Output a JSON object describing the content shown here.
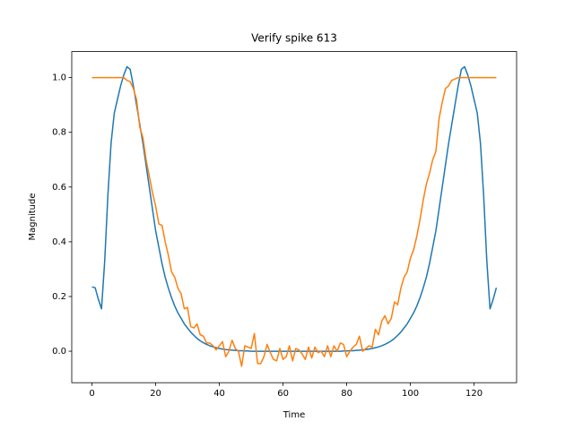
{
  "chart_data": {
    "type": "line",
    "title": "Verify spike 613",
    "xlabel": "Time",
    "ylabel": "Magnitude",
    "x": [
      0,
      1,
      2,
      3,
      4,
      5,
      6,
      7,
      8,
      9,
      10,
      11,
      12,
      13,
      14,
      15,
      16,
      17,
      18,
      19,
      20,
      21,
      22,
      23,
      24,
      25,
      26,
      27,
      28,
      29,
      30,
      31,
      32,
      33,
      34,
      35,
      36,
      37,
      38,
      39,
      40,
      41,
      42,
      43,
      44,
      45,
      46,
      47,
      48,
      49,
      50,
      51,
      52,
      53,
      54,
      55,
      56,
      57,
      58,
      59,
      60,
      61,
      62,
      63,
      64,
      65,
      66,
      67,
      68,
      69,
      70,
      71,
      72,
      73,
      74,
      75,
      76,
      77,
      78,
      79,
      80,
      81,
      82,
      83,
      84,
      85,
      86,
      87,
      88,
      89,
      90,
      91,
      92,
      93,
      94,
      95,
      96,
      97,
      98,
      99,
      100,
      101,
      102,
      103,
      104,
      105,
      106,
      107,
      108,
      109,
      110,
      111,
      112,
      113,
      114,
      115,
      116,
      117,
      118,
      119,
      120,
      121,
      122,
      123,
      124,
      125,
      126,
      127
    ],
    "series": [
      {
        "color": "#1f77b4",
        "values": [
          0.235,
          0.232,
          0.19,
          0.155,
          0.33,
          0.57,
          0.76,
          0.87,
          0.92,
          0.97,
          1.01,
          1.04,
          1.03,
          0.97,
          0.9,
          0.83,
          0.76,
          0.68,
          0.6,
          0.52,
          0.44,
          0.38,
          0.32,
          0.27,
          0.23,
          0.195,
          0.165,
          0.14,
          0.12,
          0.1,
          0.085,
          0.07,
          0.058,
          0.047,
          0.038,
          0.031,
          0.025,
          0.02,
          0.016,
          0.013,
          0.01,
          0.008,
          0.006,
          0.005,
          0.004,
          0.003,
          0.002,
          0.002,
          0.001,
          0.001,
          0,
          0,
          0,
          0,
          0,
          0,
          0,
          0,
          0,
          0,
          0,
          0,
          0,
          0,
          0,
          0,
          0,
          0,
          0,
          0,
          0,
          0,
          0,
          0,
          0,
          0,
          0,
          0,
          0,
          0.001,
          0.001,
          0.002,
          0.002,
          0.003,
          0.004,
          0.005,
          0.006,
          0.008,
          0.01,
          0.013,
          0.016,
          0.02,
          0.025,
          0.031,
          0.038,
          0.047,
          0.058,
          0.07,
          0.085,
          0.1,
          0.12,
          0.14,
          0.165,
          0.195,
          0.23,
          0.27,
          0.32,
          0.38,
          0.44,
          0.52,
          0.6,
          0.68,
          0.76,
          0.83,
          0.9,
          0.97,
          1.03,
          1.04,
          1.01,
          0.97,
          0.92,
          0.87,
          0.76,
          0.57,
          0.33,
          0.155,
          0.19,
          0.232
        ]
      },
      {
        "color": "#ff7f0e",
        "values": [
          1,
          1,
          1,
          1,
          1,
          1,
          1,
          1,
          1,
          1,
          1,
          0.99,
          0.985,
          0.96,
          0.92,
          0.82,
          0.78,
          0.7,
          0.64,
          0.58,
          0.53,
          0.465,
          0.46,
          0.4,
          0.35,
          0.29,
          0.27,
          0.23,
          0.21,
          0.155,
          0.16,
          0.09,
          0.085,
          0.1,
          0.06,
          0.055,
          0.03,
          0.03,
          0.02,
          0.005,
          0.02,
          0.035,
          -0.02,
          0,
          0.04,
          0.01,
          0,
          -0.055,
          0.02,
          0.015,
          0.01,
          0.065,
          -0.045,
          -0.045,
          -0.02,
          0.025,
          -0.005,
          -0.03,
          -0.035,
          0.01,
          -0.03,
          -0.02,
          0.02,
          -0.035,
          0.01,
          0.005,
          -0.01,
          -0.03,
          0.015,
          -0.025,
          0.015,
          -0.005,
          0,
          -0.02,
          0.02,
          -0.02,
          0.02,
          0,
          0.03,
          0.025,
          -0.02,
          0,
          0.015,
          0.025,
          0.055,
          0,
          0.01,
          0.02,
          0.015,
          0.08,
          0.06,
          0.11,
          0.13,
          0.1,
          0.12,
          0.18,
          0.17,
          0.23,
          0.27,
          0.29,
          0.34,
          0.37,
          0.42,
          0.48,
          0.55,
          0.61,
          0.65,
          0.7,
          0.73,
          0.85,
          0.91,
          0.96,
          0.97,
          0.99,
          0.995,
          1,
          1,
          1,
          1,
          1,
          1,
          1,
          1,
          1,
          1,
          1,
          1,
          1
        ]
      }
    ],
    "xlim": [
      -6.35,
      133.35
    ],
    "ylim": [
      -0.115,
      1.095
    ],
    "xticks": [
      0,
      20,
      40,
      60,
      80,
      100,
      120
    ],
    "yticks": [
      {
        "value": 0,
        "label": "0.0"
      },
      0.2,
      0.4,
      0.6,
      0.8,
      {
        "value": 1,
        "label": "1.0"
      }
    ]
  }
}
